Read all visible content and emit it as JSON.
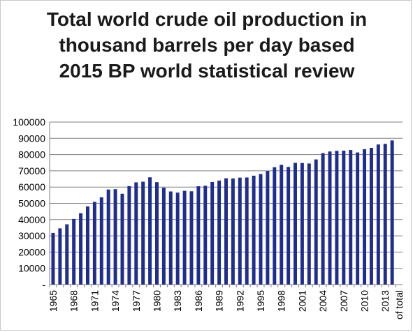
{
  "chart_data": {
    "type": "bar",
    "title": "Total world crude oil production in thousand barrels per day based 2015 BP world statistical review",
    "xlabel": "",
    "ylabel": "",
    "ylim": [
      0,
      100000
    ],
    "y_ticks": [
      "-",
      "10000",
      "20000",
      "30000",
      "40000",
      "50000",
      "60000",
      "70000",
      "80000",
      "90000",
      "100000"
    ],
    "x_tick_labels": [
      "1965",
      "1968",
      "1971",
      "1974",
      "1977",
      "1980",
      "1983",
      "1986",
      "1989",
      "1992",
      "1995",
      "1998",
      "2001",
      "2004",
      "2007",
      "2010",
      "2013",
      "of total"
    ],
    "categories": [
      "1965",
      "1966",
      "1967",
      "1968",
      "1969",
      "1970",
      "1971",
      "1972",
      "1973",
      "1974",
      "1975",
      "1976",
      "1977",
      "1978",
      "1979",
      "1980",
      "1981",
      "1982",
      "1983",
      "1984",
      "1985",
      "1986",
      "1987",
      "1988",
      "1989",
      "1990",
      "1991",
      "1992",
      "1993",
      "1994",
      "1995",
      "1996",
      "1997",
      "1998",
      "1999",
      "2000",
      "2001",
      "2002",
      "2003",
      "2004",
      "2005",
      "2006",
      "2007",
      "2008",
      "2009",
      "2010",
      "2011",
      "2012",
      "2013",
      "2014",
      "of total"
    ],
    "values": [
      31800,
      34600,
      37100,
      40400,
      43900,
      48100,
      50900,
      53700,
      58500,
      58700,
      55900,
      60600,
      62900,
      63300,
      66000,
      63000,
      59600,
      57300,
      56600,
      57700,
      57400,
      60500,
      60800,
      63100,
      64000,
      65400,
      65300,
      65800,
      65900,
      67000,
      68000,
      69900,
      72200,
      73700,
      72400,
      74900,
      74800,
      74500,
      77000,
      80900,
      81900,
      82300,
      82400,
      82800,
      81300,
      83300,
      84100,
      86200,
      86600,
      88700,
      0
    ],
    "colors": {
      "bar": "#1f2d8f",
      "axis": "#7f7f7f",
      "grid": "#7f7f7f"
    },
    "grid": true,
    "legend": "none"
  }
}
